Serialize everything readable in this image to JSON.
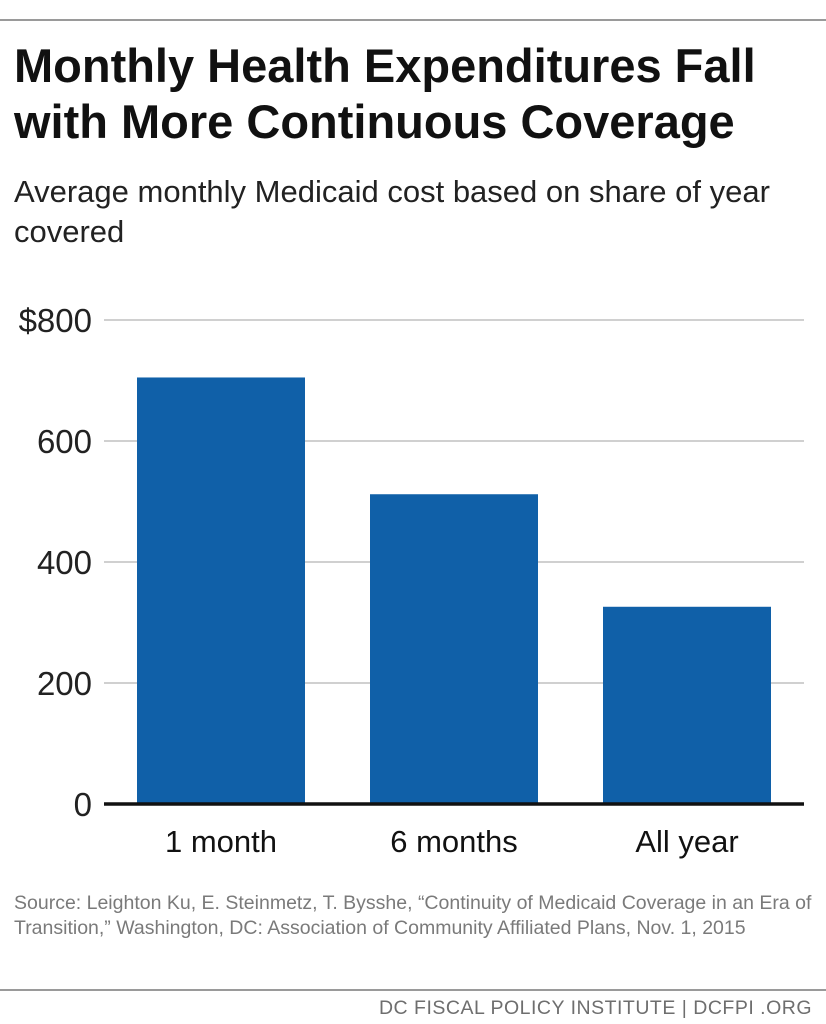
{
  "title": "Monthly Health Expenditures Fall with More Continuous Coverage",
  "subtitle": "Average monthly Medicaid cost based on share of year covered",
  "source": "Source: Leighton Ku, E. Steinmetz, T. Bysshe, “Continuity of Medicaid Coverage in an Era of Transition,” Washington, DC: Association of Community Affiliated Plans, Nov. 1, 2015",
  "footer": "DC FISCAL POLICY INSTITUTE  |  DCFPI .ORG",
  "chart_data": {
    "type": "bar",
    "title": "",
    "xlabel": "",
    "ylabel": "",
    "categories": [
      "1 month",
      "6 months",
      "All year"
    ],
    "values": [
      705,
      512,
      326
    ],
    "ylim": [
      0,
      800
    ],
    "yticks": [
      0,
      200,
      400,
      600,
      800
    ],
    "ytick_labels": [
      "0",
      "200",
      "400",
      "600",
      "$800"
    ],
    "grid": true,
    "legend": "none",
    "bar_color": "#1060a8"
  }
}
